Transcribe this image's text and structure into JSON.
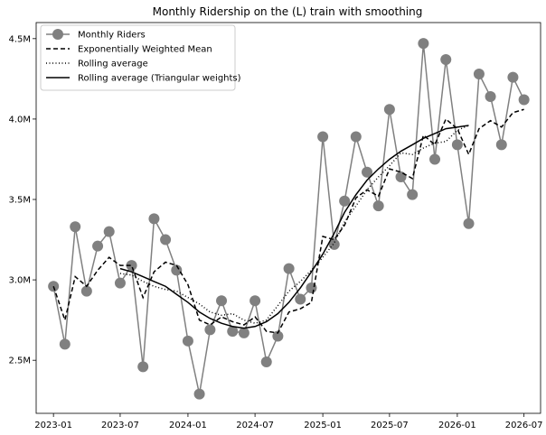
{
  "chart_data": {
    "type": "line",
    "title": "Monthly Ridership on the (L) train with smoothing",
    "xlabel": "",
    "ylabel": "",
    "x_range": [
      "2022-11-15",
      "2026-08-15"
    ],
    "ylim": [
      2170000,
      4600000
    ],
    "grid": false,
    "legend_position": "top-left",
    "x_ticks": [
      {
        "date": "2023-01-01",
        "label": "2023-01"
      },
      {
        "date": "2023-07-01",
        "label": "2023-07"
      },
      {
        "date": "2024-01-01",
        "label": "2024-01"
      },
      {
        "date": "2024-07-01",
        "label": "2024-07"
      },
      {
        "date": "2025-01-01",
        "label": "2025-01"
      },
      {
        "date": "2025-07-01",
        "label": "2025-07"
      },
      {
        "date": "2026-01-01",
        "label": "2026-01"
      },
      {
        "date": "2026-07-01",
        "label": "2026-07"
      }
    ],
    "y_ticks": [
      {
        "value": 2500000,
        "label": "2.5M"
      },
      {
        "value": 3000000,
        "label": "3.0M"
      },
      {
        "value": 3500000,
        "label": "3.5M"
      },
      {
        "value": 4000000,
        "label": "4.0M"
      },
      {
        "value": 4500000,
        "label": "4.5M"
      }
    ],
    "x": [
      "2023-01-01",
      "2023-02-01",
      "2023-03-01",
      "2023-04-01",
      "2023-05-01",
      "2023-06-01",
      "2023-07-01",
      "2023-08-01",
      "2023-09-01",
      "2023-10-01",
      "2023-11-01",
      "2023-12-01",
      "2024-01-01",
      "2024-02-01",
      "2024-03-01",
      "2024-04-01",
      "2024-05-01",
      "2024-06-01",
      "2024-07-01",
      "2024-08-01",
      "2024-09-01",
      "2024-10-01",
      "2024-11-01",
      "2024-12-01",
      "2025-01-01",
      "2025-02-01",
      "2025-03-01",
      "2025-04-01",
      "2025-05-01",
      "2025-06-01",
      "2025-07-01",
      "2025-08-01",
      "2025-09-01",
      "2025-10-01",
      "2025-11-01",
      "2025-12-01",
      "2026-01-01",
      "2026-02-01",
      "2026-03-01",
      "2026-04-01",
      "2026-05-01",
      "2026-06-01",
      "2026-07-01"
    ],
    "series": [
      {
        "name": "Monthly Riders",
        "color": "#808080",
        "style": "line-markers",
        "values": [
          2960000,
          2600000,
          3330000,
          2930000,
          3210000,
          3300000,
          2980000,
          3090000,
          2460000,
          3380000,
          3250000,
          3060000,
          2620000,
          2290000,
          2690000,
          2870000,
          2680000,
          2670000,
          2870000,
          2490000,
          2650000,
          3070000,
          2880000,
          2950000,
          3890000,
          3220000,
          3490000,
          3890000,
          3670000,
          3460000,
          4060000,
          3640000,
          3530000,
          4470000,
          3750000,
          4370000,
          3840000,
          3350000,
          4280000,
          4140000,
          3840000,
          4260000,
          4120000
        ]
      },
      {
        "name": "Exponentially Weighted Mean",
        "color": "#000000",
        "style": "dashed",
        "values": [
          2960000,
          2750000,
          3020000,
          2960000,
          3060000,
          3140000,
          3090000,
          3090000,
          2890000,
          3050000,
          3110000,
          3090000,
          2970000,
          2750000,
          2720000,
          2770000,
          2740000,
          2720000,
          2770000,
          2680000,
          2670000,
          2800000,
          2820000,
          2860000,
          3270000,
          3250000,
          3340000,
          3510000,
          3560000,
          3520000,
          3690000,
          3670000,
          3630000,
          3900000,
          3840000,
          4000000,
          3940000,
          3780000,
          3940000,
          3990000,
          3950000,
          4040000,
          4060000
        ]
      },
      {
        "name": "Rolling average",
        "color": "#000000",
        "style": "dotted",
        "values": [
          null,
          null,
          null,
          null,
          null,
          null,
          3040000,
          3030000,
          2990000,
          2960000,
          2940000,
          2930000,
          2890000,
          2850000,
          2800000,
          2780000,
          2790000,
          2750000,
          2730000,
          2750000,
          2840000,
          2930000,
          2990000,
          3060000,
          3140000,
          3230000,
          3360000,
          3460000,
          3560000,
          3640000,
          3710000,
          3790000,
          3780000,
          3820000,
          3850000,
          3860000,
          3930000,
          3960000,
          null,
          null,
          null,
          null,
          null
        ]
      },
      {
        "name": "Rolling average (Triangular weights)",
        "color": "#000000",
        "style": "solid",
        "values": [
          null,
          null,
          null,
          null,
          null,
          null,
          3070000,
          3050000,
          3020000,
          2990000,
          2960000,
          2910000,
          2860000,
          2800000,
          2760000,
          2730000,
          2710000,
          2700000,
          2710000,
          2740000,
          2790000,
          2860000,
          2950000,
          3050000,
          3160000,
          3290000,
          3420000,
          3530000,
          3620000,
          3690000,
          3750000,
          3800000,
          3840000,
          3880000,
          3910000,
          3940000,
          3950000,
          3960000,
          null,
          null,
          null,
          null,
          null
        ]
      }
    ]
  }
}
